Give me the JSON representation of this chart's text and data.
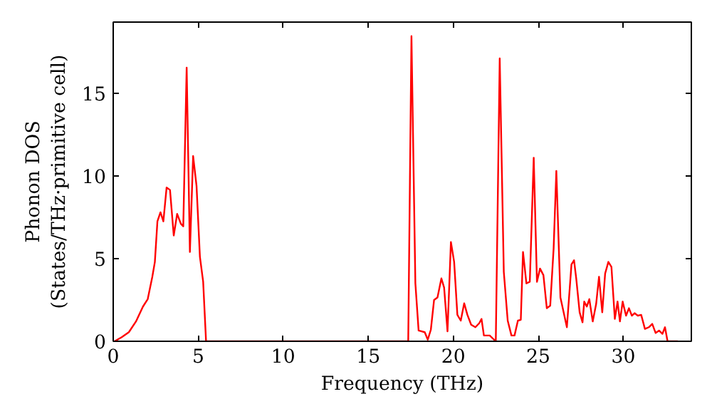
{
  "chart_data": {
    "type": "line",
    "xlabel": "Frequency (THz)",
    "ylabel": "Phonon DOS\n(States/THz·primitive cell)",
    "xlim": [
      0,
      34
    ],
    "ylim": [
      0,
      19.3
    ],
    "xticks": [
      0,
      5,
      10,
      15,
      20,
      25,
      30
    ],
    "yticks": [
      0,
      5,
      10,
      15
    ],
    "grid": false,
    "series": [
      {
        "color": "#ff0000",
        "x": [
          0.08,
          0.5,
          0.92,
          1.34,
          1.75,
          2.03,
          2.3,
          2.45,
          2.6,
          2.78,
          2.95,
          3.14,
          3.34,
          3.56,
          3.76,
          3.98,
          4.12,
          4.32,
          4.51,
          4.7,
          4.9,
          5.1,
          5.29,
          5.46,
          17.35,
          17.54,
          17.77,
          17.96,
          18.32,
          18.5,
          18.68,
          18.87,
          19.07,
          19.3,
          19.46,
          19.66,
          19.86,
          20.05,
          20.24,
          20.44,
          20.64,
          20.83,
          21.05,
          21.3,
          21.53,
          21.66,
          21.8,
          22.14,
          22.5,
          22.73,
          22.97,
          23.2,
          23.42,
          23.6,
          23.8,
          23.97,
          24.1,
          24.3,
          24.5,
          24.73,
          24.92,
          25.1,
          25.3,
          25.5,
          25.7,
          25.9,
          26.06,
          26.3,
          26.68,
          26.95,
          27.1,
          27.23,
          27.43,
          27.6,
          27.7,
          27.85,
          28.0,
          28.2,
          28.4,
          28.57,
          28.76,
          28.93,
          29.12,
          29.3,
          29.5,
          29.66,
          29.8,
          29.96,
          30.16,
          30.33,
          30.5,
          30.66,
          30.85,
          31.05,
          31.27,
          31.5,
          31.7,
          31.9,
          32.1,
          32.3,
          32.45,
          32.6,
          33.2
        ],
        "values": [
          0,
          0.25,
          0.55,
          1.2,
          2.1,
          2.55,
          3.9,
          4.8,
          7.25,
          7.8,
          7.25,
          9.3,
          9.15,
          6.4,
          7.7,
          7.1,
          6.95,
          16.55,
          5.4,
          11.2,
          9.4,
          5.1,
          3.6,
          0,
          0,
          18.45,
          3.5,
          0.65,
          0.55,
          0.1,
          0.7,
          2.5,
          2.65,
          3.8,
          3.25,
          0.6,
          6.0,
          4.8,
          1.6,
          1.25,
          2.3,
          1.6,
          1.0,
          0.85,
          1.1,
          1.35,
          0.35,
          0.35,
          0,
          17.1,
          4.2,
          1.25,
          0.35,
          0.35,
          1.25,
          1.3,
          5.4,
          3.5,
          3.6,
          11.1,
          3.6,
          4.4,
          4.0,
          2.0,
          2.15,
          5.6,
          10.3,
          2.65,
          0.85,
          4.65,
          4.9,
          3.8,
          1.75,
          1.15,
          2.4,
          2.1,
          2.55,
          1.2,
          2.25,
          3.9,
          1.75,
          4.1,
          4.8,
          4.5,
          1.35,
          2.4,
          1.2,
          2.4,
          1.55,
          2.0,
          1.55,
          1.7,
          1.55,
          1.6,
          0.75,
          0.85,
          1.05,
          0.5,
          0.65,
          0.45,
          0.85,
          0,
          0
        ]
      }
    ]
  }
}
